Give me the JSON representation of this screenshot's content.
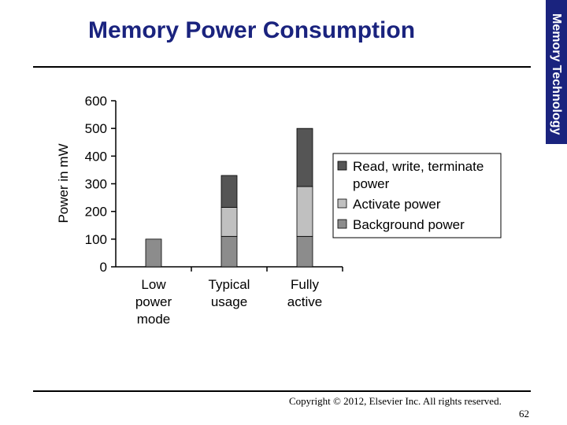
{
  "slide": {
    "title": "Memory Power Consumption",
    "side_tab": "Memory Technology",
    "copyright": "Copyright © 2012, Elsevier Inc. All rights reserved.",
    "page_number": "62"
  },
  "colors": {
    "title": "#1a237e",
    "side_tab_bg": "#1a237e",
    "read_write": "#555555",
    "activate": "#c0c0c0",
    "background": "#8c8c8c"
  },
  "chart_data": {
    "type": "bar",
    "stacked": true,
    "ylabel": "Power in mW",
    "xlabel": "",
    "ylim": [
      0,
      600
    ],
    "yticks": [
      0,
      100,
      200,
      300,
      400,
      500,
      600
    ],
    "categories": [
      [
        "Low",
        "power",
        "mode"
      ],
      [
        "Typical",
        "usage"
      ],
      [
        "Fully",
        "active"
      ]
    ],
    "series": [
      {
        "name": "Background power",
        "color": "#8c8c8c",
        "values": [
          100,
          110,
          110
        ]
      },
      {
        "name": "Activate power",
        "color": "#c0c0c0",
        "values": [
          0,
          105,
          180
        ]
      },
      {
        "name": "Read, write, terminate power",
        "color": "#555555",
        "values": [
          0,
          115,
          210
        ]
      }
    ],
    "legend": {
      "position": "right",
      "entries": [
        {
          "lines": [
            "Read, write, terminate",
            "power"
          ],
          "color": "#555555"
        },
        {
          "lines": [
            "Activate power"
          ],
          "color": "#c0c0c0"
        },
        {
          "lines": [
            "Background power"
          ],
          "color": "#8c8c8c"
        }
      ]
    },
    "grid": false
  }
}
